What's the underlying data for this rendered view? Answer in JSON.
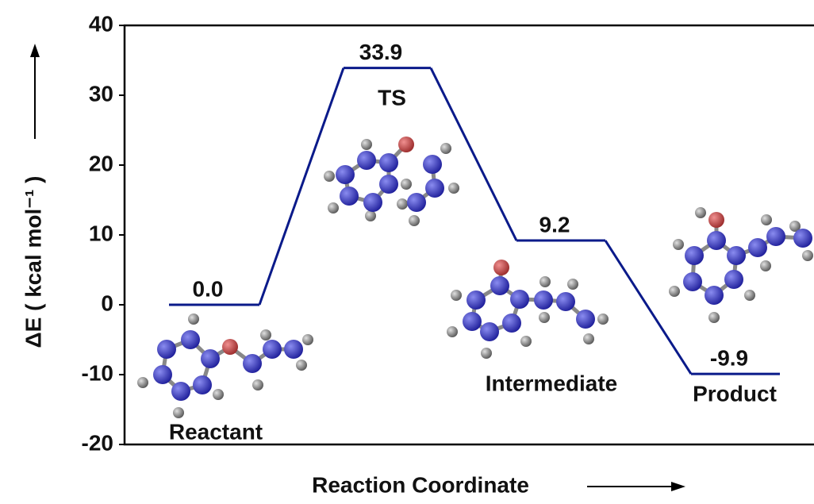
{
  "chart_data": {
    "type": "energy-profile",
    "x_label": "Reaction Coordinate",
    "y_label": "ΔE ( kcal mol⁻¹ )",
    "categories": [
      "Reactant",
      "TS",
      "Intermediate",
      "Product"
    ],
    "values": [
      0,
      33.9,
      9.2,
      -9.9
    ],
    "value_labels": [
      "0.0",
      "33.9",
      "9.2",
      "-9.9"
    ],
    "color": "#0a1a8a",
    "ylim": [
      -20,
      40
    ],
    "yticks": [
      -20,
      -10,
      0,
      10,
      20,
      30,
      40
    ]
  }
}
